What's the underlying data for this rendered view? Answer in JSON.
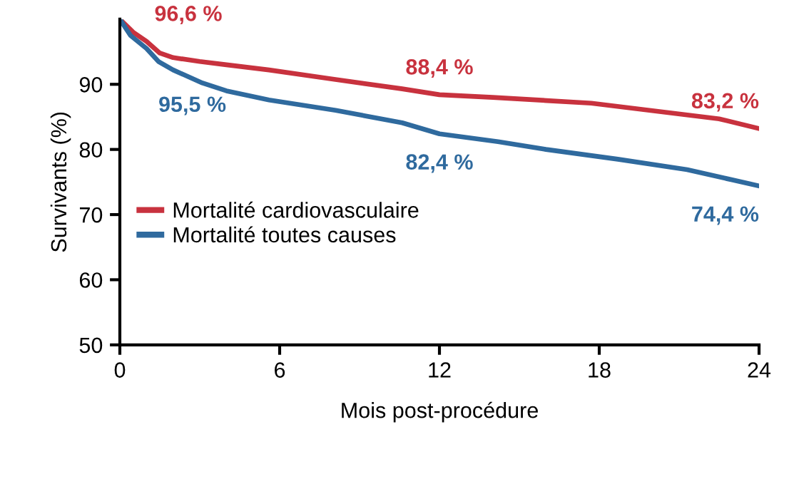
{
  "chart_data": {
    "type": "line",
    "xlabel": "Mois post-procédure",
    "ylabel": "Survivants (%)",
    "xlim": [
      0,
      24
    ],
    "xticks": [
      0,
      6,
      12,
      18,
      24
    ],
    "ylim": [
      50,
      100
    ],
    "yticks": [
      50,
      60,
      70,
      80,
      90
    ],
    "grid": false,
    "legend": "left",
    "marker": "none",
    "line_style": "solid",
    "series": [
      {
        "name": "Mortalité cardiovasculaire",
        "color": "#c8323e",
        "x": [
          0,
          0.5,
          1,
          1.5,
          2,
          3,
          4,
          5.6,
          8,
          10.6,
          12,
          14,
          17.7,
          21.3,
          22.5,
          24
        ],
        "values": [
          100,
          98,
          96.6,
          94.8,
          94.1,
          93.5,
          93,
          92.2,
          90.8,
          89.3,
          88.4,
          88,
          87.1,
          85.3,
          84.7,
          83.2
        ]
      },
      {
        "name": "Mortalité toutes causes",
        "color": "#2f6a9e",
        "x": [
          0,
          0.4,
          1,
          1.45,
          2,
          3.1,
          4,
          5.6,
          8.1,
          10.6,
          12,
          14.2,
          16,
          18.7,
          21.3,
          24
        ],
        "values": [
          100,
          97.5,
          95.5,
          93.5,
          92.2,
          90.2,
          89,
          87.6,
          86,
          84.1,
          82.4,
          81.2,
          80,
          78.5,
          76.9,
          74.4
        ]
      }
    ],
    "annotations": [
      {
        "text": "96,6 %",
        "x": 1,
        "y": 96.6
      },
      {
        "text": "95,5 %",
        "x": 1,
        "y": 95.5
      },
      {
        "text": "88,4 %",
        "x": 12,
        "y": 88.4
      },
      {
        "text": "82,4 %",
        "x": 12,
        "y": 82.4
      },
      {
        "text": "83,2 %",
        "x": 24,
        "y": 83.2
      },
      {
        "text": "74,4 %",
        "x": 24,
        "y": 74.4
      }
    ]
  }
}
